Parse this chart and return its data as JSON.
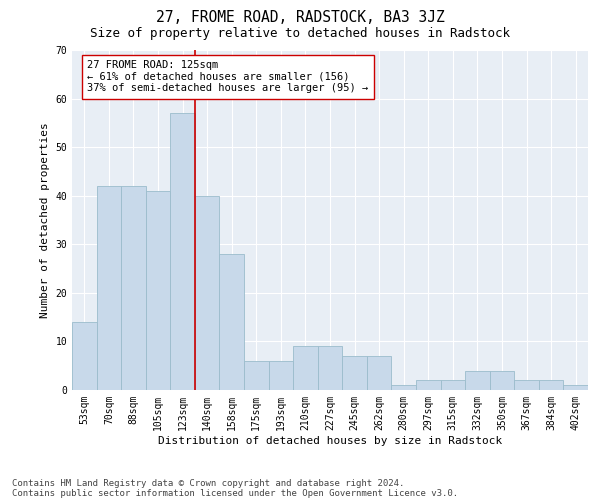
{
  "title": "27, FROME ROAD, RADSTOCK, BA3 3JZ",
  "subtitle": "Size of property relative to detached houses in Radstock",
  "xlabel": "Distribution of detached houses by size in Radstock",
  "ylabel": "Number of detached properties",
  "categories": [
    "53sqm",
    "70sqm",
    "88sqm",
    "105sqm",
    "123sqm",
    "140sqm",
    "158sqm",
    "175sqm",
    "193sqm",
    "210sqm",
    "227sqm",
    "245sqm",
    "262sqm",
    "280sqm",
    "297sqm",
    "315sqm",
    "332sqm",
    "350sqm",
    "367sqm",
    "384sqm",
    "402sqm"
  ],
  "bar_heights": [
    14,
    42,
    42,
    41,
    57,
    40,
    28,
    6,
    6,
    9,
    9,
    7,
    7,
    1,
    2,
    2,
    4,
    4,
    2,
    2,
    1
  ],
  "bar_color": "#c8d9ea",
  "bar_edge_color": "#9bbccc",
  "vline_color": "#cc0000",
  "annotation_text": "27 FROME ROAD: 125sqm\n← 61% of detached houses are smaller (156)\n37% of semi-detached houses are larger (95) →",
  "annotation_box_color": "#ffffff",
  "annotation_box_edge": "#cc0000",
  "ylim": [
    0,
    70
  ],
  "background_color": "#e8eef5",
  "footer_line1": "Contains HM Land Registry data © Crown copyright and database right 2024.",
  "footer_line2": "Contains public sector information licensed under the Open Government Licence v3.0.",
  "title_fontsize": 10.5,
  "subtitle_fontsize": 9,
  "xlabel_fontsize": 8,
  "ylabel_fontsize": 8,
  "tick_fontsize": 7,
  "annotation_fontsize": 7.5,
  "footer_fontsize": 6.5
}
